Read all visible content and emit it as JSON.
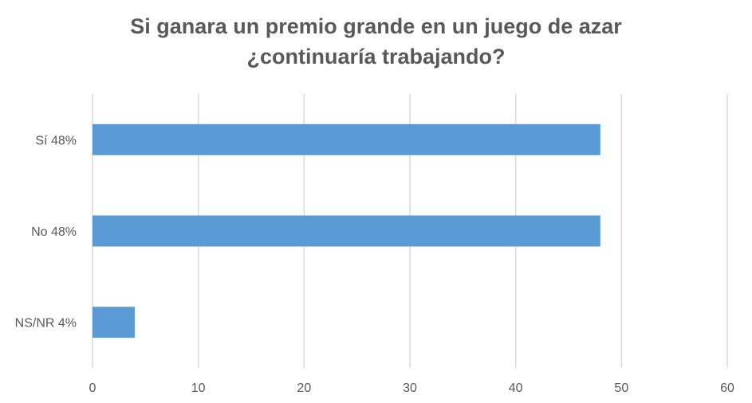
{
  "chart_data": {
    "type": "bar",
    "orientation": "horizontal",
    "title_lines": [
      "Si ganara un premio grande en un juego de azar",
      "¿continuaría trabajando?"
    ],
    "categories": [
      "Sí  48%",
      "No  48%",
      "NS/NR  4%"
    ],
    "values": [
      48,
      48,
      4
    ],
    "xlim": [
      0,
      60
    ],
    "xticks": [
      0,
      10,
      20,
      30,
      40,
      50,
      60
    ],
    "grid": "vertical",
    "legend": "none",
    "bar_color": "#5B9BD5",
    "grid_color": "#D9D9D9"
  }
}
